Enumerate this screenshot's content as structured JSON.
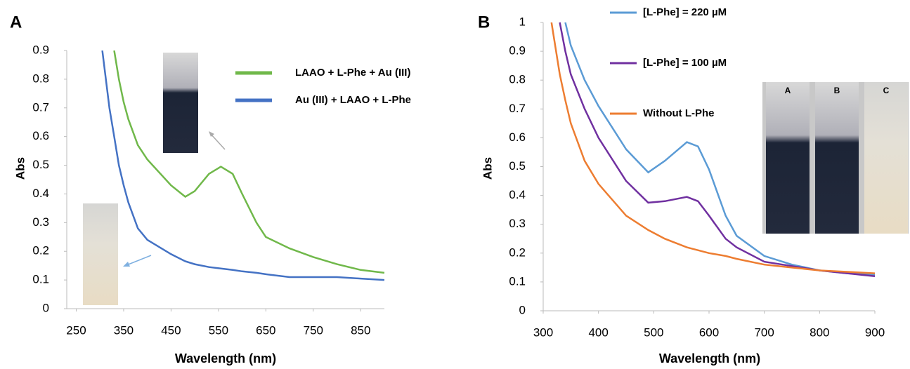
{
  "chart_data": [
    {
      "type": "line",
      "panel_label": "A",
      "x_label": "Wavelength (nm)",
      "y_label": "Abs",
      "x": [
        305,
        320,
        330,
        340,
        350,
        360,
        380,
        400,
        450,
        480,
        500,
        530,
        555,
        580,
        600,
        630,
        650,
        700,
        750,
        800,
        850,
        900
      ],
      "series": [
        {
          "name": "LAAO + L-Phe + Au (III)",
          "color": "#70b84a",
          "values": [
            null,
            null,
            0.9,
            0.8,
            0.72,
            0.66,
            0.57,
            0.52,
            0.43,
            0.39,
            0.41,
            0.47,
            0.495,
            0.47,
            0.4,
            0.3,
            0.25,
            0.21,
            0.18,
            0.155,
            0.135,
            0.125
          ]
        },
        {
          "name": "Au (III) + LAAO + L-Phe",
          "color": "#4472c4",
          "values": [
            0.9,
            0.7,
            0.6,
            0.5,
            0.43,
            0.37,
            0.28,
            0.24,
            0.19,
            0.165,
            0.155,
            0.145,
            0.14,
            0.135,
            0.13,
            0.125,
            0.12,
            0.11,
            0.11,
            0.11,
            0.105,
            0.1
          ]
        }
      ],
      "xlim": [
        230,
        900
      ],
      "xticks": [
        250,
        350,
        450,
        550,
        650,
        750,
        850
      ],
      "ylim": [
        0,
        0.9
      ],
      "yticks": [
        0,
        0.1,
        0.2,
        0.3,
        0.4,
        0.5,
        0.6,
        0.7,
        0.8,
        0.9
      ],
      "legend": "upper right"
    },
    {
      "type": "line",
      "panel_label": "B",
      "x_label": "Wavelength (nm)",
      "y_label": "Abs",
      "inset_labels": [
        "A",
        "B",
        "C"
      ],
      "x": [
        315,
        330,
        340,
        350,
        375,
        400,
        450,
        490,
        520,
        560,
        580,
        600,
        630,
        650,
        700,
        750,
        800,
        850,
        900
      ],
      "series": [
        {
          "name": "[L-Phe] = 220 µM",
          "color": "#5b9bd5",
          "values": [
            null,
            null,
            1.0,
            0.92,
            0.8,
            0.71,
            0.56,
            0.48,
            0.52,
            0.585,
            0.57,
            0.49,
            0.33,
            0.26,
            0.19,
            0.16,
            0.14,
            0.13,
            0.125
          ]
        },
        {
          "name": "[L-Phe] = 100 µM",
          "color": "#7030a0",
          "values": [
            null,
            1.0,
            0.9,
            0.82,
            0.7,
            0.6,
            0.45,
            0.375,
            0.38,
            0.395,
            0.38,
            0.33,
            0.25,
            0.22,
            0.17,
            0.155,
            0.14,
            0.13,
            0.12
          ]
        },
        {
          "name": "Without L-Phe",
          "color": "#ed7d31",
          "values": [
            1.0,
            0.82,
            0.73,
            0.65,
            0.52,
            0.44,
            0.33,
            0.28,
            0.25,
            0.22,
            0.21,
            0.2,
            0.19,
            0.18,
            0.16,
            0.15,
            0.14,
            0.135,
            0.13
          ]
        }
      ],
      "xlim": [
        300,
        900
      ],
      "xticks": [
        300,
        400,
        500,
        600,
        700,
        800,
        900
      ],
      "ylim": [
        0,
        1
      ],
      "yticks": [
        0,
        0.1,
        0.2,
        0.3,
        0.4,
        0.5,
        0.6,
        0.7,
        0.8,
        0.9,
        1
      ],
      "legend": "upper left"
    }
  ]
}
